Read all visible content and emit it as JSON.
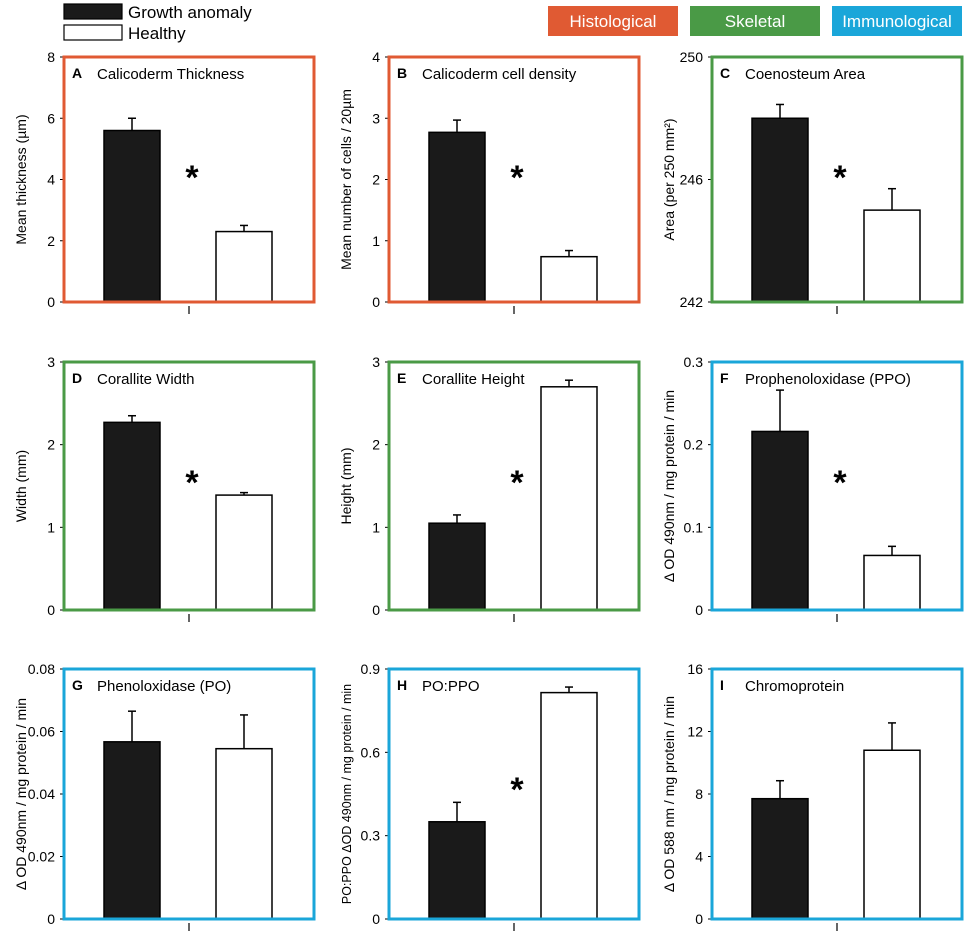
{
  "colors": {
    "histological": "#e05a33",
    "skeletal": "#4a9a46",
    "immunological": "#1aa6d9",
    "anomaly_bar": "#1a1a1a",
    "healthy_bar": "#ffffff"
  },
  "legend": {
    "series": [
      {
        "name": "Growth anomaly",
        "fill": "anomaly"
      },
      {
        "name": "Healthy",
        "fill": "healthy"
      }
    ],
    "categories": [
      {
        "name": "Histological",
        "color_key": "histological"
      },
      {
        "name": "Skeletal",
        "color_key": "skeletal"
      },
      {
        "name": "Immunological",
        "color_key": "immunological"
      }
    ]
  },
  "chart_data": [
    {
      "letter": "A",
      "title": "Calicoderm Thickness",
      "type": "bar",
      "category": "histological",
      "ylabel": "Mean thickness (µm)",
      "ylim": [
        0,
        8
      ],
      "yticks": [
        "0",
        "2",
        "4",
        "6",
        "8"
      ],
      "series": [
        {
          "name": "Growth anomaly",
          "values": [
            5.6
          ],
          "errors": [
            0.4
          ]
        },
        {
          "name": "Healthy",
          "values": [
            2.3
          ],
          "errors": [
            0.2
          ]
        }
      ],
      "annotation": "*"
    },
    {
      "letter": "B",
      "title": "Calicoderm cell density",
      "type": "bar",
      "category": "histological",
      "ylabel": "Mean number of cells / 20µm",
      "ylim": [
        0,
        4
      ],
      "yticks": [
        "0",
        "1",
        "2",
        "3",
        "4"
      ],
      "series": [
        {
          "name": "Growth anomaly",
          "values": [
            2.77
          ],
          "errors": [
            0.2
          ]
        },
        {
          "name": "Healthy",
          "values": [
            0.74
          ],
          "errors": [
            0.1
          ]
        }
      ],
      "annotation": "*"
    },
    {
      "letter": "C",
      "title": "Coenosteum Area",
      "type": "bar",
      "category": "skeletal",
      "ylabel": "Area (per 250 mm²)",
      "ylim": [
        242,
        250
      ],
      "yticks": [
        "242",
        "246",
        "250"
      ],
      "series": [
        {
          "name": "Growth anomaly",
          "values": [
            248.0
          ],
          "errors": [
            0.45
          ]
        },
        {
          "name": "Healthy",
          "values": [
            245.0
          ],
          "errors": [
            0.7
          ]
        }
      ],
      "annotation": "*"
    },
    {
      "letter": "D",
      "title": "Corallite Width",
      "type": "bar",
      "category": "skeletal",
      "ylabel": "Width (mm)",
      "ylim": [
        0,
        3
      ],
      "yticks": [
        "0",
        "1",
        "2",
        "3"
      ],
      "series": [
        {
          "name": "Growth anomaly",
          "values": [
            2.27
          ],
          "errors": [
            0.08
          ]
        },
        {
          "name": "Healthy",
          "values": [
            1.39
          ],
          "errors": [
            0.03
          ]
        }
      ],
      "annotation": "*"
    },
    {
      "letter": "E",
      "title": "Corallite Height",
      "type": "bar",
      "category": "skeletal",
      "ylabel": "Height (mm)",
      "ylim": [
        0,
        3
      ],
      "yticks": [
        "0",
        "1",
        "2",
        "3"
      ],
      "series": [
        {
          "name": "Growth anomaly",
          "values": [
            1.05
          ],
          "errors": [
            0.1
          ]
        },
        {
          "name": "Healthy",
          "values": [
            2.7
          ],
          "errors": [
            0.08
          ]
        }
      ],
      "annotation": "*"
    },
    {
      "letter": "F",
      "title": "Prophenoloxidase (PPO)",
      "type": "bar",
      "category": "immunological",
      "ylabel": "Δ OD 490nm / mg protein / min",
      "ylim": [
        0,
        0.3
      ],
      "yticks": [
        "0",
        "0.1",
        "0.2",
        "0.3"
      ],
      "series": [
        {
          "name": "Growth anomaly",
          "values": [
            0.216
          ],
          "errors": [
            0.05
          ]
        },
        {
          "name": "Healthy",
          "values": [
            0.066
          ],
          "errors": [
            0.011
          ]
        }
      ],
      "annotation": "*"
    },
    {
      "letter": "G",
      "title": "Phenoloxidase (PO)",
      "type": "bar",
      "category": "immunological",
      "ylabel": "Δ OD 490nm / mg protein / min",
      "ylim": [
        0,
        0.08
      ],
      "yticks": [
        "0",
        "0.02",
        "0.04",
        "0.06",
        "0.08"
      ],
      "series": [
        {
          "name": "Growth anomaly",
          "values": [
            0.0567
          ],
          "errors": [
            0.0098
          ]
        },
        {
          "name": "Healthy",
          "values": [
            0.0545
          ],
          "errors": [
            0.0108
          ]
        }
      ],
      "annotation": ""
    },
    {
      "letter": "H",
      "title": "PO:PPO",
      "type": "bar",
      "category": "immunological",
      "ylabel": "PO:PPO ΔOD 490nm / mg protein / min",
      "ylim": [
        0,
        0.9
      ],
      "yticks": [
        "0",
        "0.3",
        "0.6",
        "0.9"
      ],
      "series": [
        {
          "name": "Growth anomaly",
          "values": [
            0.35
          ],
          "errors": [
            0.07
          ]
        },
        {
          "name": "Healthy",
          "values": [
            0.815
          ],
          "errors": [
            0.02
          ]
        }
      ],
      "annotation": "*"
    },
    {
      "letter": "I",
      "title": "Chromoprotein",
      "type": "bar",
      "category": "immunological",
      "ylabel": "Δ OD 588 nm / mg protein / min",
      "ylim": [
        0,
        16
      ],
      "yticks": [
        "0",
        "4",
        "8",
        "12",
        "16"
      ],
      "series": [
        {
          "name": "Growth anomaly",
          "values": [
            7.7
          ],
          "errors": [
            1.15
          ]
        },
        {
          "name": "Healthy",
          "values": [
            10.8
          ],
          "errors": [
            1.75
          ]
        }
      ],
      "annotation": ""
    }
  ]
}
